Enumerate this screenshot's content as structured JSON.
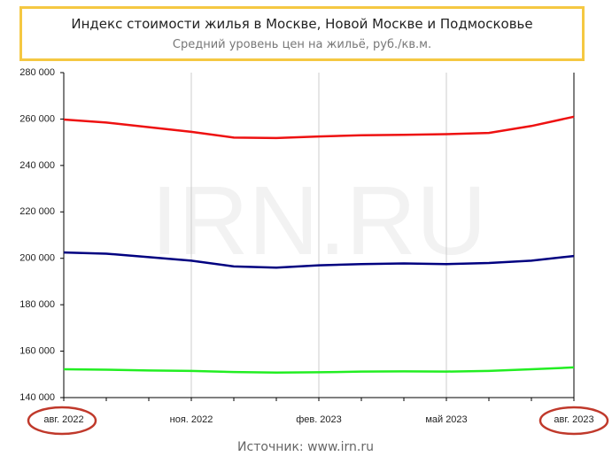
{
  "title": "Индекс стоимости жилья в Москве, Новой Москве и Подмосковье",
  "subtitle": "Средний уровень цен на жильё, руб./кв.м.",
  "watermark": "IRN.RU",
  "source": "Источник: www.irn.ru",
  "chart_data": {
    "type": "line",
    "categories": [
      "авг. 2022",
      null,
      null,
      "ноя. 2022",
      null,
      null,
      "фев. 2023",
      null,
      null,
      "май 2023",
      null,
      null,
      "авг. 2023"
    ],
    "series": [
      {
        "color": "#ee1111",
        "values": [
          259800,
          258500,
          256500,
          254500,
          252000,
          251800,
          252500,
          253000,
          253200,
          253500,
          254000,
          257000,
          261000
        ]
      },
      {
        "color": "#000080",
        "values": [
          202500,
          202000,
          200500,
          199000,
          196500,
          196000,
          197000,
          197500,
          197800,
          197500,
          198000,
          199000,
          201000
        ]
      },
      {
        "color": "#22ee22",
        "values": [
          152200,
          152000,
          151700,
          151500,
          151000,
          150800,
          150900,
          151200,
          151300,
          151200,
          151500,
          152200,
          153000
        ]
      }
    ],
    "ylim": [
      140000,
      280000
    ],
    "yticks": [
      {
        "value": 140000,
        "label": "140 000"
      },
      {
        "value": 160000,
        "label": "160 000"
      },
      {
        "value": 180000,
        "label": "180 000"
      },
      {
        "value": 200000,
        "label": "200 000"
      },
      {
        "value": 220000,
        "label": "220 000"
      },
      {
        "value": 240000,
        "label": "240 000"
      },
      {
        "value": 260000,
        "label": "260 000"
      },
      {
        "value": 280000,
        "label": "280 000"
      }
    ],
    "grid": true
  }
}
